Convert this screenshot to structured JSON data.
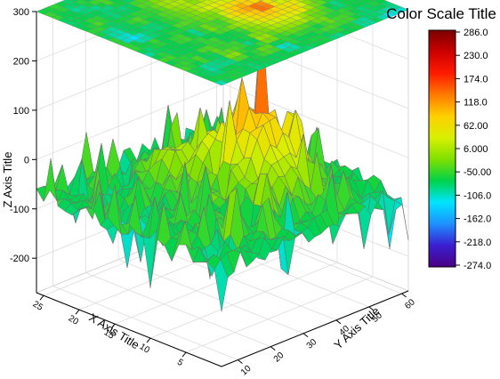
{
  "chart_data": {
    "type": "surface3d",
    "title": "",
    "xlabel": "X Axis Title",
    "ylabel": "Y Axis Title",
    "zlabel": "Z Axis Title",
    "x_ticks": [
      "5",
      "10",
      "15",
      "20",
      "25"
    ],
    "y_ticks": [
      "10",
      "20",
      "30",
      "40",
      "50",
      "60"
    ],
    "z_ticks": [
      "300",
      "200",
      "100",
      "0",
      "-100",
      "-200"
    ],
    "xlim": [
      0,
      26
    ],
    "ylim": [
      5,
      62
    ],
    "zlim": [
      -270,
      300
    ],
    "projected_contour_at_top": true,
    "colorbar": {
      "title": "Color Scale Title",
      "labels": [
        "286.0",
        "230.0",
        "174.0",
        "118.0",
        "62.00",
        "6.000",
        "-50.00",
        "-106.0",
        "-162.0",
        "-218.0",
        "-274.0"
      ],
      "range": [
        -274,
        286
      ],
      "colors": [
        "#4b0082",
        "#3a1fd0",
        "#1e90ff",
        "#00e5ff",
        "#00d24a",
        "#7fe000",
        "#d8f000",
        "#ffd000",
        "#ff7a00",
        "#ff1a00",
        "#cc0000",
        "#7a0000"
      ]
    },
    "surface_summary": {
      "max_z": 286,
      "min_z": -274,
      "peak_location": [
        11,
        40
      ],
      "typical_edge_z": [
        -80,
        -40
      ]
    }
  }
}
